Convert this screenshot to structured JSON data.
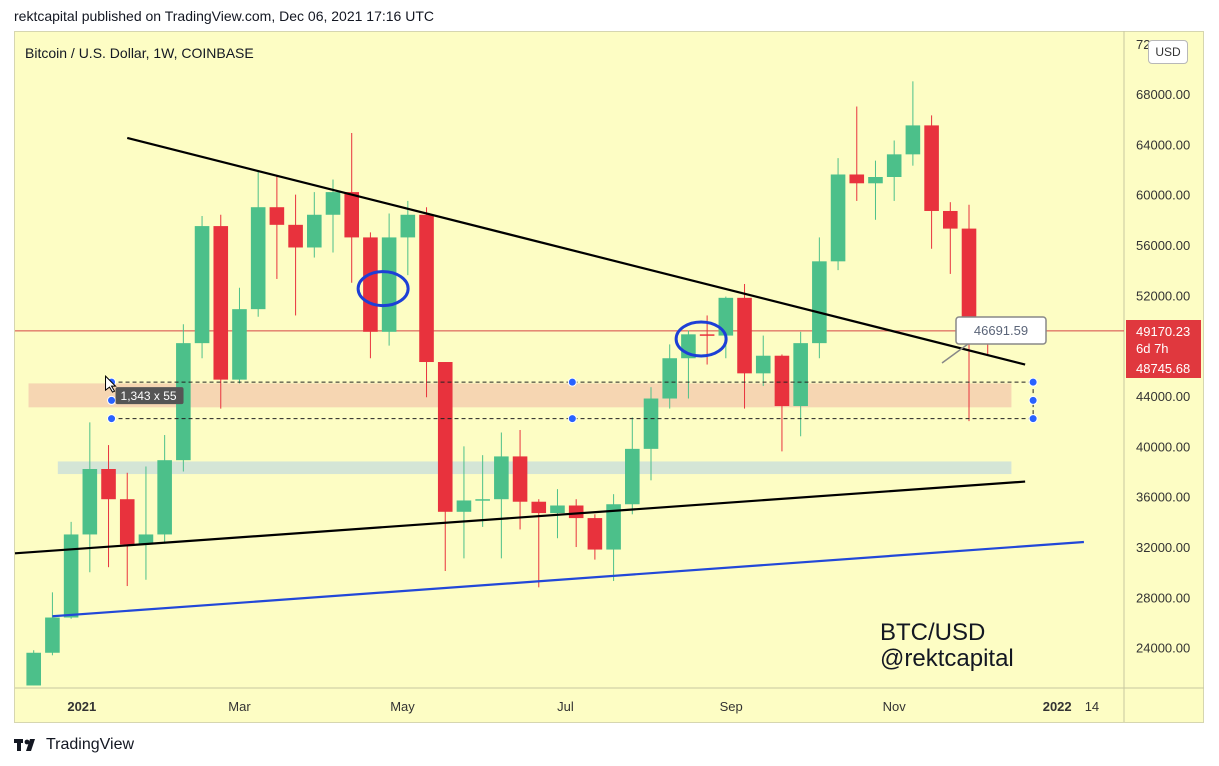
{
  "header": {
    "published_text": "rektcapital published on TradingView.com, Dec 06, 2021 17:16 UTC"
  },
  "symbol_label": "Bitcoin / U.S. Dollar, 1W, COINBASE",
  "currency_button": "USD",
  "footer": {
    "brand": "TradingView"
  },
  "colors": {
    "up": "#4cc08a",
    "down": "#e8323d",
    "background": "#fdfdc4",
    "trendline": "#000000",
    "support": "#2248d8",
    "price_line": "#d54646",
    "resistance_zone": "#f5d2b0",
    "support_zone": "#cfe2d8"
  },
  "chart_data": {
    "type": "candlestick",
    "title": "Bitcoin / U.S. Dollar, 1W, COINBASE",
    "y_axis": {
      "ticks": [
        24000,
        28000,
        32000,
        36000,
        40000,
        44000,
        48000,
        52000,
        56000,
        60000,
        64000,
        68000
      ],
      "tick_labels": [
        "24000.00",
        "28000.00",
        "32000.00",
        "36000.00",
        "40000.00",
        "44000.00",
        "48000.00",
        "52000.00",
        "56000.00",
        "60000.00",
        "64000.00",
        "68000.00"
      ],
      "ylim": [
        20800,
        73000
      ]
    },
    "x_axis": {
      "tick_labels": [
        "2021",
        "Mar",
        "May",
        "Jul",
        "Sep",
        "Nov",
        "2022",
        "14"
      ],
      "tick_dates": [
        "2021-01-01",
        "2021-03-01",
        "2021-05-01",
        "2021-07-01",
        "2021-09-01",
        "2021-11-01",
        "2022-01-01",
        "2022-01-14"
      ],
      "xlim": [
        "2020-12-07",
        "2022-01-26"
      ]
    },
    "candles": [
      {
        "date": "2020-12-14",
        "open": 21000,
        "high": 23800,
        "low": 21000,
        "close": 23600
      },
      {
        "date": "2020-12-21",
        "open": 23600,
        "high": 28400,
        "low": 23400,
        "close": 26400
      },
      {
        "date": "2020-12-28",
        "open": 26400,
        "high": 34000,
        "low": 26300,
        "close": 33000
      },
      {
        "date": "2021-01-04",
        "open": 33000,
        "high": 41900,
        "low": 30000,
        "close": 38200
      },
      {
        "date": "2021-01-11",
        "open": 38200,
        "high": 40100,
        "low": 30400,
        "close": 35800
      },
      {
        "date": "2021-01-18",
        "open": 35800,
        "high": 37900,
        "low": 28900,
        "close": 32200
      },
      {
        "date": "2021-01-25",
        "open": 32200,
        "high": 38400,
        "low": 29400,
        "close": 33000
      },
      {
        "date": "2021-02-01",
        "open": 33000,
        "high": 40900,
        "low": 32300,
        "close": 38900
      },
      {
        "date": "2021-02-08",
        "open": 38900,
        "high": 49700,
        "low": 38000,
        "close": 48200
      },
      {
        "date": "2021-02-15",
        "open": 48200,
        "high": 58300,
        "low": 47000,
        "close": 57500
      },
      {
        "date": "2021-02-22",
        "open": 57500,
        "high": 58400,
        "low": 43000,
        "close": 45300
      },
      {
        "date": "2021-03-01",
        "open": 45300,
        "high": 52600,
        "low": 45000,
        "close": 50900
      },
      {
        "date": "2021-03-08",
        "open": 50900,
        "high": 61800,
        "low": 50300,
        "close": 59000
      },
      {
        "date": "2021-03-15",
        "open": 59000,
        "high": 61500,
        "low": 53300,
        "close": 57600
      },
      {
        "date": "2021-03-22",
        "open": 57600,
        "high": 60000,
        "low": 50400,
        "close": 55800
      },
      {
        "date": "2021-03-29",
        "open": 55800,
        "high": 60200,
        "low": 55000,
        "close": 58400
      },
      {
        "date": "2021-04-05",
        "open": 58400,
        "high": 61200,
        "low": 55400,
        "close": 60200
      },
      {
        "date": "2021-04-12",
        "open": 60200,
        "high": 64900,
        "low": 53000,
        "close": 56600
      },
      {
        "date": "2021-04-19",
        "open": 56600,
        "high": 57000,
        "low": 47000,
        "close": 49100
      },
      {
        "date": "2021-04-26",
        "open": 49100,
        "high": 58500,
        "low": 48000,
        "close": 56600
      },
      {
        "date": "2021-05-03",
        "open": 56600,
        "high": 59500,
        "low": 53600,
        "close": 58400
      },
      {
        "date": "2021-05-10",
        "open": 58400,
        "high": 59000,
        "low": 43900,
        "close": 46700
      },
      {
        "date": "2021-05-17",
        "open": 46700,
        "high": 46700,
        "low": 30100,
        "close": 34800
      },
      {
        "date": "2021-05-24",
        "open": 34800,
        "high": 40000,
        "low": 31100,
        "close": 35700
      },
      {
        "date": "2021-05-31",
        "open": 35700,
        "high": 39300,
        "low": 33600,
        "close": 35800
      },
      {
        "date": "2021-06-07",
        "open": 35800,
        "high": 41100,
        "low": 31100,
        "close": 39200
      },
      {
        "date": "2021-06-14",
        "open": 39200,
        "high": 41300,
        "low": 33400,
        "close": 35600
      },
      {
        "date": "2021-06-21",
        "open": 35600,
        "high": 35800,
        "low": 28800,
        "close": 34700
      },
      {
        "date": "2021-06-28",
        "open": 34700,
        "high": 36600,
        "low": 32700,
        "close": 35300
      },
      {
        "date": "2021-07-05",
        "open": 35300,
        "high": 35800,
        "low": 32000,
        "close": 34300
      },
      {
        "date": "2021-07-12",
        "open": 34300,
        "high": 34600,
        "low": 31000,
        "close": 31800
      },
      {
        "date": "2021-07-19",
        "open": 31800,
        "high": 36200,
        "low": 29300,
        "close": 35400
      },
      {
        "date": "2021-07-26",
        "open": 35400,
        "high": 42300,
        "low": 34600,
        "close": 39800
      },
      {
        "date": "2021-08-02",
        "open": 39800,
        "high": 44700,
        "low": 37300,
        "close": 43800
      },
      {
        "date": "2021-08-09",
        "open": 43800,
        "high": 48100,
        "low": 43000,
        "close": 47000
      },
      {
        "date": "2021-08-16",
        "open": 47000,
        "high": 49200,
        "low": 43800,
        "close": 48900
      },
      {
        "date": "2021-08-23",
        "open": 48900,
        "high": 50400,
        "low": 46500,
        "close": 48800
      },
      {
        "date": "2021-08-30",
        "open": 48800,
        "high": 51900,
        "low": 47000,
        "close": 51800
      },
      {
        "date": "2021-09-06",
        "open": 51800,
        "high": 52900,
        "low": 43000,
        "close": 45800
      },
      {
        "date": "2021-09-13",
        "open": 45800,
        "high": 48800,
        "low": 44800,
        "close": 47200
      },
      {
        "date": "2021-09-20",
        "open": 47200,
        "high": 47300,
        "low": 39600,
        "close": 43200
      },
      {
        "date": "2021-09-27",
        "open": 43200,
        "high": 49100,
        "low": 40800,
        "close": 48200
      },
      {
        "date": "2021-10-04",
        "open": 48200,
        "high": 56600,
        "low": 47000,
        "close": 54700
      },
      {
        "date": "2021-10-11",
        "open": 54700,
        "high": 62900,
        "low": 54000,
        "close": 61600
      },
      {
        "date": "2021-10-18",
        "open": 61600,
        "high": 67000,
        "low": 59500,
        "close": 60900
      },
      {
        "date": "2021-10-25",
        "open": 60900,
        "high": 62700,
        "low": 58000,
        "close": 61400
      },
      {
        "date": "2021-11-01",
        "open": 61400,
        "high": 64300,
        "low": 59500,
        "close": 63200
      },
      {
        "date": "2021-11-08",
        "open": 63200,
        "high": 69000,
        "low": 62300,
        "close": 65500
      },
      {
        "date": "2021-11-15",
        "open": 65500,
        "high": 66300,
        "low": 55700,
        "close": 58700
      },
      {
        "date": "2021-11-22",
        "open": 58700,
        "high": 59400,
        "low": 53700,
        "close": 57300
      },
      {
        "date": "2021-11-29",
        "open": 57300,
        "high": 59200,
        "low": 42000,
        "close": 49400
      },
      {
        "date": "2021-12-06",
        "open": 49400,
        "high": 50100,
        "low": 47300,
        "close": 49170
      }
    ],
    "annotations": {
      "current_price": "49170.23",
      "countdown": "6d 7h",
      "price_marker": "48745.68",
      "callout": "46691.59",
      "measure_label": "1,343 x 55",
      "watermark_line1": "BTC/USD",
      "watermark_line2": "@rektcapital",
      "top_axis_fragment": "72 00"
    },
    "drawings": {
      "descending_trendline": [
        [
          "2021-01-18",
          64500
        ],
        [
          "2021-12-20",
          46500
        ]
      ],
      "ascending_trendline": [
        [
          "2020-12-07",
          31500
        ],
        [
          "2021-12-20",
          37200
        ]
      ],
      "support_line": [
        [
          "2020-12-21",
          26500
        ],
        [
          "2022-01-11",
          32400
        ]
      ],
      "resistance_zone": {
        "from": "2021-01-11",
        "to": "2021-12-13",
        "low": 43100,
        "high": 45000
      },
      "support_zone": {
        "from": "2021-01-04",
        "to": "2021-12-13",
        "low": 37800,
        "high": 38800
      },
      "measure_box": {
        "from": "2021-01-11",
        "to": "2021-12-20",
        "low": 42200,
        "high": 45100
      },
      "circled_candles": [
        "2021-04-26",
        "2021-08-23"
      ]
    }
  }
}
